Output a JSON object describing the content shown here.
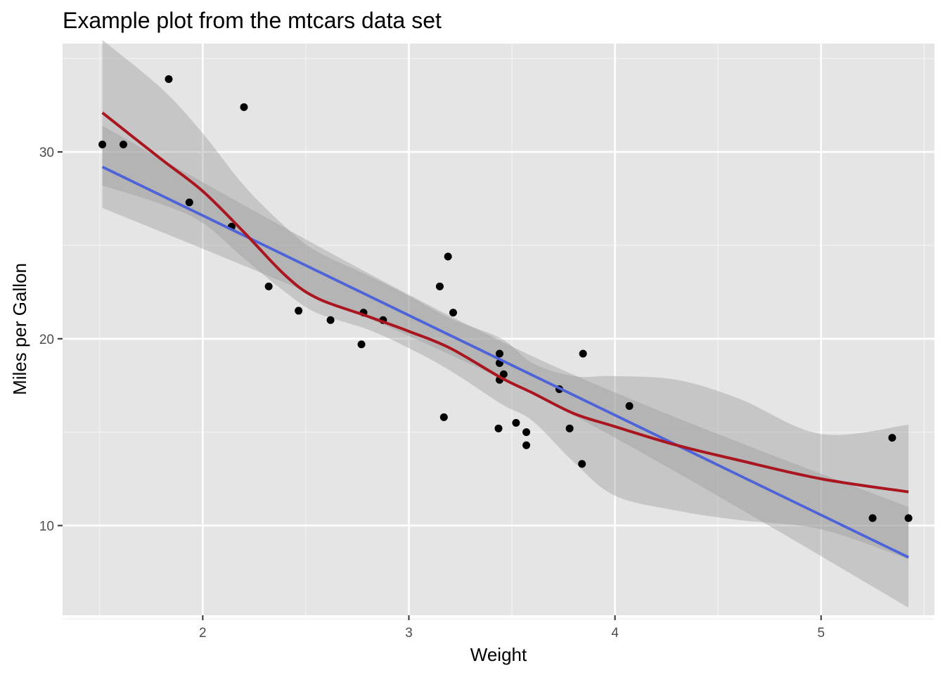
{
  "chart_data": {
    "type": "scatter",
    "title": "Example plot from the mtcars data set",
    "xlabel": "Weight",
    "ylabel": "Miles per Gallon",
    "xlim": [
      1.32,
      5.55
    ],
    "ylim": [
      5.2,
      35.8
    ],
    "x_ticks": [
      2,
      3,
      4,
      5
    ],
    "y_ticks": [
      10,
      20,
      30
    ],
    "x_ticks_label": [
      "2",
      "3",
      "4",
      "5"
    ],
    "y_ticks_label": [
      "10",
      "20",
      "30"
    ],
    "grid": true,
    "legend": "none",
    "points": [
      {
        "x": 2.62,
        "y": 21.0
      },
      {
        "x": 2.875,
        "y": 21.0
      },
      {
        "x": 2.32,
        "y": 22.8
      },
      {
        "x": 3.215,
        "y": 21.4
      },
      {
        "x": 3.44,
        "y": 18.7
      },
      {
        "x": 3.46,
        "y": 18.1
      },
      {
        "x": 3.57,
        "y": 14.3
      },
      {
        "x": 3.19,
        "y": 24.4
      },
      {
        "x": 3.15,
        "y": 22.8
      },
      {
        "x": 3.44,
        "y": 19.2
      },
      {
        "x": 3.44,
        "y": 17.8
      },
      {
        "x": 4.07,
        "y": 16.4
      },
      {
        "x": 3.73,
        "y": 17.3
      },
      {
        "x": 3.78,
        "y": 15.2
      },
      {
        "x": 5.25,
        "y": 10.4
      },
      {
        "x": 5.424,
        "y": 10.4
      },
      {
        "x": 5.345,
        "y": 14.7
      },
      {
        "x": 2.2,
        "y": 32.4
      },
      {
        "x": 1.615,
        "y": 30.4
      },
      {
        "x": 1.835,
        "y": 33.9
      },
      {
        "x": 2.465,
        "y": 21.5
      },
      {
        "x": 3.52,
        "y": 15.5
      },
      {
        "x": 3.435,
        "y": 15.2
      },
      {
        "x": 3.84,
        "y": 13.3
      },
      {
        "x": 3.845,
        "y": 19.2
      },
      {
        "x": 1.935,
        "y": 27.3
      },
      {
        "x": 2.14,
        "y": 26.0
      },
      {
        "x": 1.513,
        "y": 30.4
      },
      {
        "x": 3.17,
        "y": 15.8
      },
      {
        "x": 2.77,
        "y": 19.7
      },
      {
        "x": 3.57,
        "y": 15.0
      },
      {
        "x": 2.78,
        "y": 21.4
      }
    ],
    "linear_fit": {
      "color": "#4f63d8",
      "x": [
        1.513,
        5.424
      ],
      "y": [
        29.2,
        8.3
      ],
      "ci_lower": [
        27.0,
        5.6
      ],
      "ci_upper": [
        31.4,
        11.0
      ]
    },
    "loess_fit": {
      "color": "#a91620",
      "x": [
        1.513,
        1.8,
        2.0,
        2.2,
        2.4,
        2.55,
        2.8,
        3.0,
        3.2,
        3.45,
        3.6,
        3.8,
        4.0,
        4.3,
        4.6,
        5.0,
        5.424
      ],
      "y": [
        32.1,
        29.6,
        27.9,
        25.7,
        23.4,
        22.2,
        21.2,
        20.4,
        19.5,
        17.9,
        17.1,
        16.0,
        15.3,
        14.3,
        13.5,
        12.5,
        11.8
      ],
      "lower": [
        28.2,
        27.2,
        26.2,
        24.3,
        22.5,
        21.4,
        20.5,
        19.5,
        18.3,
        16.5,
        15.6,
        13.4,
        11.6,
        10.8,
        10.3,
        9.8,
        8.2
      ],
      "upper": [
        36.0,
        33.4,
        31.0,
        28.2,
        26.0,
        24.7,
        23.4,
        22.3,
        21.1,
        20.0,
        18.7,
        18.0,
        18.0,
        17.8,
        16.8,
        14.9,
        15.4
      ]
    }
  }
}
